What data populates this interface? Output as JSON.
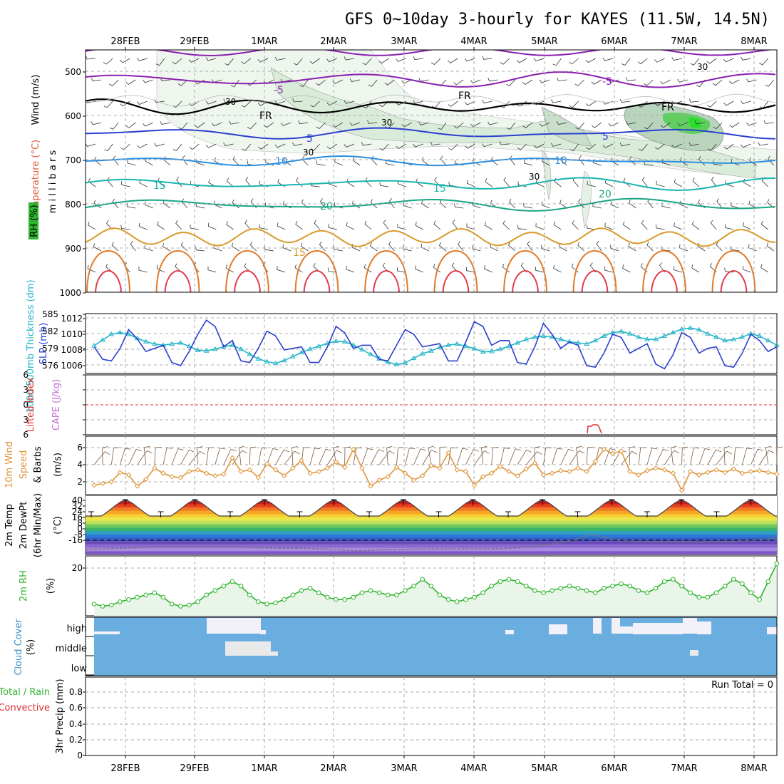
{
  "title": "GFS 0~10day 3-hourly for KAYES (11.5W, 14.5N)",
  "dates": [
    "28FEB",
    "29FEB",
    "1MAR",
    "2MAR",
    "3MAR",
    "4MAR",
    "5MAR",
    "6MAR",
    "7MAR",
    "8MAR"
  ],
  "colors": {
    "rh": "#2fb52f",
    "temp": "#e05a3a",
    "wind": "#e0953a",
    "slp": "#2a3fd0",
    "thick": "#23b5c8",
    "cape": "#c070d0",
    "lifted": "#e03030",
    "precip_total": "#2fb52f",
    "precip_conv": "#e03030",
    "cloud": "#3a8fc8",
    "cloud_fill": "#6aaee0"
  },
  "panels": {
    "upper": {
      "labels": {
        "wind": "Wind (m/s)",
        "temp": "Temperature (°C)",
        "rh": "RH (%)",
        "y": "m i l l i b a r s"
      },
      "yticks": [
        "500",
        "600",
        "700",
        "800",
        "900",
        "1000"
      ],
      "contour_labels": [
        "-5",
        "-5",
        "FR",
        "FR",
        "FR",
        "5",
        "5",
        "10",
        "10",
        "15",
        "15",
        "20",
        "20",
        "15",
        "30",
        "30",
        "30",
        "30",
        "30"
      ]
    },
    "slp": {
      "labels": {
        "thick": "1000-500mb Thickness (dm)",
        "slp": "SLP (mb)"
      },
      "left_ticks": [
        "585",
        "582",
        "579",
        "576"
      ],
      "right_ticks": [
        "1012",
        "1010",
        "1008",
        "1006"
      ]
    },
    "cape": {
      "labels": {
        "lifted": "Lifted Index",
        "cape": "CAPE (J/kg)"
      },
      "yticks": [
        "6",
        "3",
        "0",
        "3",
        "6"
      ]
    },
    "wind10": {
      "labels": {
        "a": "10m Wind",
        "b": "Speed",
        "c": "& Barbs",
        "y": "(m/s)"
      },
      "yticks": [
        "6",
        "4",
        "2"
      ]
    },
    "temp2m": {
      "labels": {
        "a": "2m Temp",
        "b": "2m DewPt",
        "c": "(6hr Min/Max)",
        "y": "(°C)"
      },
      "yticks": [
        "40",
        "32",
        "24",
        "16",
        "8",
        "0",
        "-8",
        "-16"
      ]
    },
    "rh2m": {
      "labels": {
        "a": "2m RH",
        "y": "(%)"
      },
      "yticks": [
        "20"
      ]
    },
    "cloud": {
      "labels": {
        "a": "Cloud Cover",
        "y": "(%)"
      },
      "levels": [
        "high",
        "middle",
        "low"
      ]
    },
    "precip": {
      "labels": {
        "a": "Total / Rain",
        "b": "Convective",
        "c": "3hr Precip (mm)"
      },
      "yticks": [
        "0.8",
        "0.6",
        "0.4",
        "0.2",
        "0"
      ],
      "run_total": "Run Total = 0"
    }
  },
  "chart_data": {
    "type": "line",
    "x": "3-hourly steps from 27FEB 12Z to 8MAR 06Z (80 steps)",
    "slp_mb": [
      1008.4,
      1006.8,
      1006.6,
      1008.2,
      1010.6,
      1009.4,
      1007.8,
      1008.2,
      1008.6,
      1006.4,
      1006.0,
      1007.8,
      1010.0,
      1011.8,
      1011.0,
      1008.4,
      1009.2,
      1006.6,
      1006.4,
      1008.2,
      1010.4,
      1009.8,
      1008.0,
      1008.2,
      1008.4,
      1006.4,
      1006.4,
      1008.4,
      1011.0,
      1010.2,
      1008.2,
      1008.6,
      1008.6,
      1006.8,
      1006.6,
      1008.6,
      1010.6,
      1010.0,
      1008.4,
      1008.6,
      1008.8,
      1006.6,
      1006.6,
      1009.0,
      1011.6,
      1011.0,
      1008.6,
      1009.2,
      1009.2,
      1006.4,
      1006.2,
      1008.4,
      1011.4,
      1010.0,
      1008.2,
      1009.0,
      1008.6,
      1006.0,
      1005.8,
      1007.6,
      1010.0,
      1009.6,
      1007.6,
      1008.2,
      1008.8,
      1006.2,
      1005.6,
      1007.4,
      1010.2,
      1009.6,
      1007.6,
      1008.2,
      1008.4,
      1006.0,
      1005.8,
      1007.6,
      1010.0,
      1009.2,
      1007.8,
      1008.4
    ],
    "thickness_dm": [
      579.5,
      580.5,
      581.5,
      581.8,
      581.5,
      580.8,
      580.2,
      579.8,
      579.6,
      579.8,
      580.0,
      579.4,
      578.7,
      578.6,
      578.9,
      579.3,
      579.6,
      578.9,
      578.0,
      577.2,
      576.7,
      576.4,
      576.9,
      577.6,
      578.3,
      578.9,
      579.4,
      579.9,
      580.3,
      580.2,
      579.6,
      578.8,
      578.0,
      577.2,
      576.6,
      576.2,
      576.5,
      577.3,
      578.1,
      578.6,
      579.2,
      579.6,
      579.8,
      579.4,
      579.0,
      578.4,
      578.5,
      578.9,
      579.4,
      580.0,
      580.6,
      581.0,
      581.2,
      581.0,
      580.6,
      580.2,
      580.0,
      579.8,
      580.4,
      581.2,
      581.8,
      582.0,
      581.6,
      581.0,
      580.6,
      580.6,
      581.2,
      581.8,
      582.4,
      582.6,
      582.3,
      581.6,
      581.0,
      580.4,
      580.6,
      581.0,
      581.6,
      581.2,
      580.4,
      579.6
    ],
    "wind10_ms": [
      1.6,
      1.8,
      2.0,
      3.1,
      2.8,
      1.5,
      2.3,
      3.6,
      3.0,
      2.6,
      2.5,
      3.2,
      3.4,
      3.0,
      2.7,
      2.9,
      4.8,
      3.2,
      3.4,
      2.5,
      4.1,
      3.4,
      2.7,
      3.6,
      4.5,
      3.0,
      3.2,
      3.6,
      4.3,
      3.7,
      5.8,
      3.6,
      1.5,
      2.2,
      2.6,
      3.7,
      3.0,
      2.2,
      2.7,
      3.9,
      3.6,
      5.4,
      3.4,
      3.2,
      1.6,
      2.6,
      3.0,
      3.8,
      3.2,
      2.7,
      3.5,
      4.2,
      2.8,
      3.0,
      3.3,
      3.2,
      3.6,
      3.2,
      4.4,
      5.8,
      5.3,
      5.6,
      3.2,
      2.8,
      3.3,
      3.6,
      3.4,
      3.0,
      1.0,
      3.2,
      2.8,
      3.1,
      3.4,
      3.1,
      3.5,
      3.0,
      3.2,
      3.3,
      3.1,
      2.9
    ],
    "rh2m_pct": [
      4,
      3,
      3.5,
      5,
      6,
      7,
      8,
      9,
      7,
      4,
      3,
      3.5,
      5,
      8,
      10,
      12,
      14,
      12,
      8,
      5,
      4,
      4.5,
      6,
      8,
      10,
      11,
      9,
      7,
      6,
      6,
      7,
      9,
      10,
      9,
      8,
      8,
      10,
      12,
      15,
      12,
      8,
      6,
      5,
      6,
      7,
      9,
      12,
      14,
      15,
      14,
      12,
      10,
      9,
      10,
      11,
      12,
      11,
      10,
      9,
      11,
      12,
      13,
      12,
      10,
      9,
      11,
      14,
      15,
      12,
      9,
      7,
      7,
      9,
      12,
      15,
      13,
      9,
      6,
      14,
      22
    ]
  }
}
